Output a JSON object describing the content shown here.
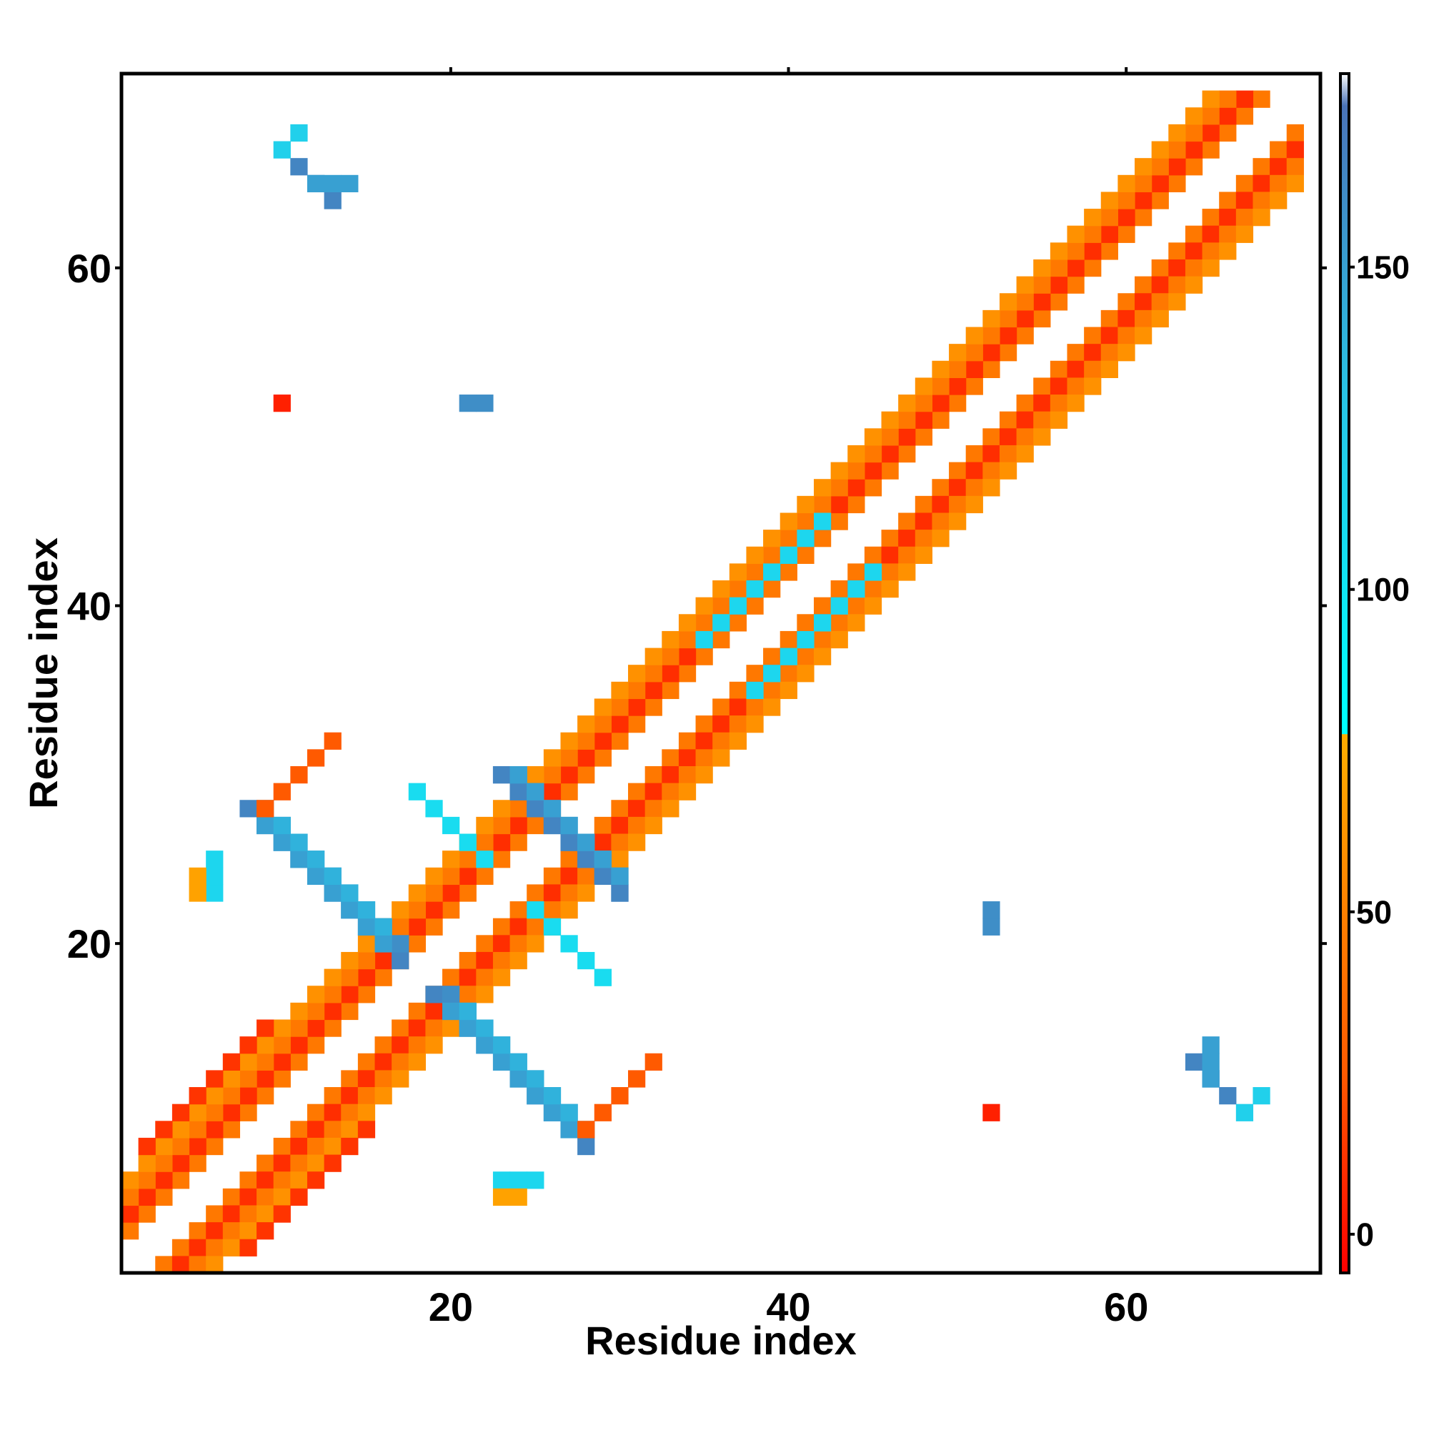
{
  "chart_data": {
    "type": "heatmap",
    "title": "",
    "xlabel": "Residue index",
    "ylabel": "Residue index",
    "xlim": [
      0.5,
      71.5
    ],
    "ylim": [
      0.5,
      71.5
    ],
    "x_ticks": [
      20,
      40,
      60
    ],
    "y_ticks": [
      20,
      40,
      60
    ],
    "colorbar": {
      "range": [
        -6,
        180
      ],
      "ticks": [
        0,
        50,
        100,
        150
      ],
      "stops": [
        {
          "value": -6,
          "color": "#ff0000"
        },
        {
          "value": 25,
          "color": "#ff5a00"
        },
        {
          "value": 50,
          "color": "#ff8000"
        },
        {
          "value": 75,
          "color": "#ffaa00"
        },
        {
          "value": 80,
          "color": "#00ffff"
        },
        {
          "value": 130,
          "color": "#29c4e6"
        },
        {
          "value": 175,
          "color": "#4a73b8"
        },
        {
          "value": 180,
          "color": "#ffffff"
        }
      ]
    },
    "segments": [
      {
        "i0": 1,
        "j0": 3,
        "di": 1,
        "dj": 1,
        "len": 68,
        "value": 45
      },
      {
        "i0": 3,
        "j0": 1,
        "di": 1,
        "dj": 1,
        "len": 68,
        "value": 45
      },
      {
        "i0": 1,
        "j0": 4,
        "di": 1,
        "dj": 1,
        "len": 67,
        "value": 10
      },
      {
        "i0": 4,
        "j0": 1,
        "di": 1,
        "dj": 1,
        "len": 67,
        "value": 10
      },
      {
        "i0": 1,
        "j0": 5,
        "di": 1,
        "dj": 1,
        "len": 66,
        "value": 45
      },
      {
        "i0": 5,
        "j0": 1,
        "di": 1,
        "dj": 1,
        "len": 66,
        "value": 45
      },
      {
        "i0": 1,
        "j0": 6,
        "di": 1,
        "dj": 1,
        "len": 65,
        "value": 60
      },
      {
        "i0": 6,
        "j0": 1,
        "di": 1,
        "dj": 1,
        "len": 65,
        "value": 60
      },
      {
        "i0": 2,
        "j0": 8,
        "di": 1,
        "dj": 1,
        "len": 8,
        "value": 12
      },
      {
        "i0": 8,
        "j0": 2,
        "di": 1,
        "dj": 1,
        "len": 8,
        "value": 12
      },
      {
        "i0": 35,
        "j0": 38,
        "di": 1,
        "dj": 1,
        "len": 8,
        "value": 115
      },
      {
        "i0": 38,
        "j0": 35,
        "di": 1,
        "dj": 1,
        "len": 8,
        "value": 115
      },
      {
        "i0": 8,
        "j0": 28,
        "di": 1,
        "dj": -1,
        "len": 10,
        "value": 165
      },
      {
        "i0": 28,
        "j0": 8,
        "di": -1,
        "dj": 1,
        "len": 10,
        "value": 165
      },
      {
        "i0": 9,
        "j0": 28,
        "di": 1,
        "dj": -1,
        "len": 9,
        "value": 160
      },
      {
        "i0": 28,
        "j0": 9,
        "di": -1,
        "dj": 1,
        "len": 9,
        "value": 160
      },
      {
        "i0": 9,
        "j0": 27,
        "di": 1,
        "dj": -1,
        "len": 8,
        "value": 150
      },
      {
        "i0": 27,
        "j0": 9,
        "di": -1,
        "dj": 1,
        "len": 8,
        "value": 150
      },
      {
        "i0": 10,
        "j0": 27,
        "di": 1,
        "dj": -1,
        "len": 7,
        "value": 140
      },
      {
        "i0": 27,
        "j0": 10,
        "di": -1,
        "dj": 1,
        "len": 7,
        "value": 140
      },
      {
        "i0": 23,
        "j0": 30,
        "di": 1,
        "dj": -1,
        "len": 8,
        "value": 165
      },
      {
        "i0": 30,
        "j0": 23,
        "di": -1,
        "dj": 1,
        "len": 8,
        "value": 165
      },
      {
        "i0": 24,
        "j0": 30,
        "di": 1,
        "dj": -1,
        "len": 7,
        "value": 150
      },
      {
        "i0": 30,
        "j0": 24,
        "di": -1,
        "dj": 1,
        "len": 7,
        "value": 150
      },
      {
        "i0": 18,
        "j0": 29,
        "di": 1,
        "dj": -1,
        "len": 5,
        "value": 110
      },
      {
        "i0": 29,
        "j0": 18,
        "di": -1,
        "dj": 1,
        "len": 5,
        "value": 110
      },
      {
        "i0": 6,
        "j0": 23,
        "di": 0,
        "dj": 1,
        "len": 3,
        "value": 115
      },
      {
        "i0": 23,
        "j0": 6,
        "di": 1,
        "dj": 0,
        "len": 3,
        "value": 115
      },
      {
        "i0": 5,
        "j0": 23,
        "di": 0,
        "dj": 1,
        "len": 2,
        "value": 70
      },
      {
        "i0": 23,
        "j0": 5,
        "di": 1,
        "dj": 0,
        "len": 2,
        "value": 70
      },
      {
        "i0": 9,
        "j0": 28,
        "di": 1,
        "dj": 1,
        "len": 5,
        "value": 25
      },
      {
        "i0": 28,
        "j0": 9,
        "di": 1,
        "dj": 1,
        "len": 5,
        "value": 25
      },
      {
        "i0": 11,
        "j0": 66,
        "di": 1,
        "dj": -1,
        "len": 3,
        "value": 165
      },
      {
        "i0": 66,
        "j0": 11,
        "di": -1,
        "dj": 1,
        "len": 3,
        "value": 165
      },
      {
        "i0": 12,
        "j0": 65,
        "di": 1,
        "dj": 0,
        "len": 3,
        "value": 150
      },
      {
        "i0": 65,
        "j0": 12,
        "di": 0,
        "dj": 1,
        "len": 3,
        "value": 150
      },
      {
        "i0": 10,
        "j0": 67,
        "di": 1,
        "dj": 1,
        "len": 2,
        "value": 120
      },
      {
        "i0": 67,
        "j0": 10,
        "di": 1,
        "dj": 1,
        "len": 2,
        "value": 120
      },
      {
        "i0": 21,
        "j0": 52,
        "di": 1,
        "dj": 0,
        "len": 2,
        "value": 160
      },
      {
        "i0": 52,
        "j0": 21,
        "di": 0,
        "dj": 1,
        "len": 2,
        "value": 160
      },
      {
        "i0": 10,
        "j0": 52,
        "di": 0,
        "dj": 0,
        "len": 1,
        "value": 5
      },
      {
        "i0": 52,
        "j0": 10,
        "di": 0,
        "dj": 0,
        "len": 1,
        "value": 5
      }
    ]
  }
}
